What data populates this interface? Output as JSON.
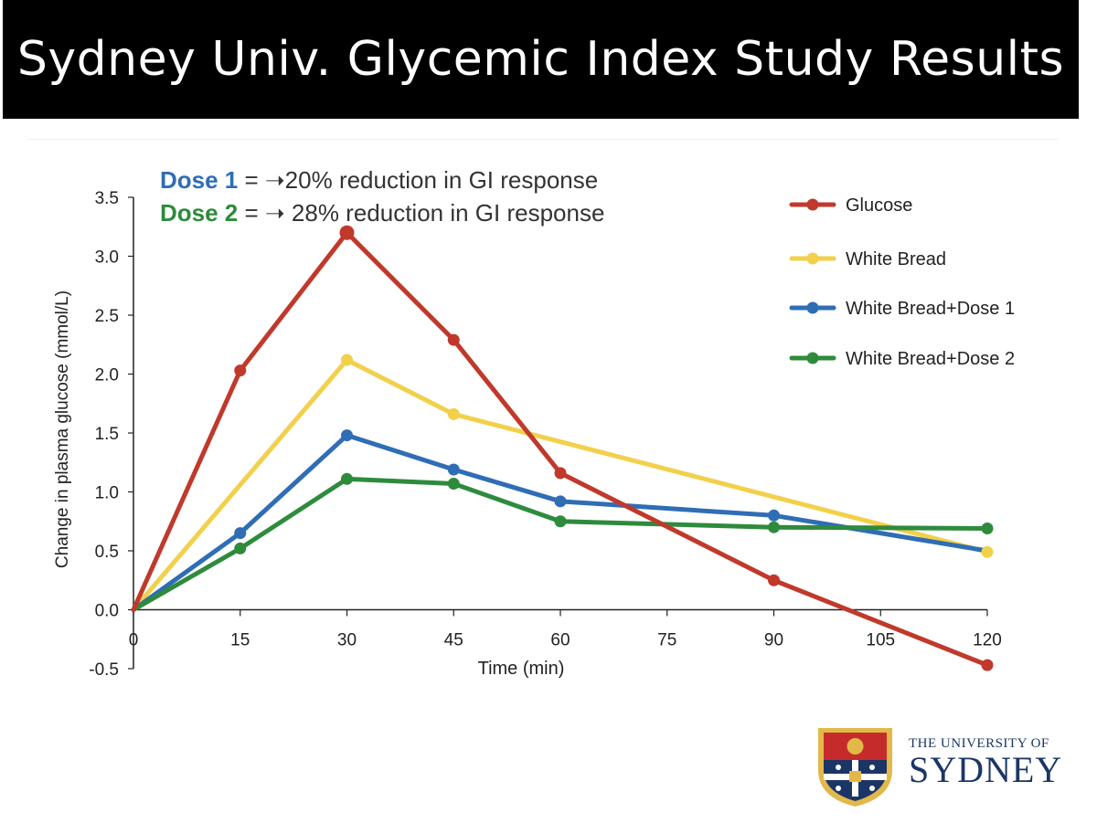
{
  "title": "Sydney Univ. Glycemic Index Study Results",
  "notes": [
    {
      "label": "Dose 1",
      "label_color": "#2f6db5",
      "text": " = ➝20% reduction in GI response"
    },
    {
      "label": "Dose 2",
      "label_color": "#2e8b3c",
      "text": " = ➝ 28% reduction in GI response"
    }
  ],
  "logo": {
    "line1": "THE UNIVERSITY OF",
    "line2": "SYDNEY"
  },
  "chart_data": {
    "type": "line",
    "xlabel": "Time (min)",
    "ylabel": "Change in plasma glucose (mmol/L)",
    "xlim": [
      0,
      120
    ],
    "ylim": [
      -0.5,
      3.5
    ],
    "xticks": [
      0,
      15,
      30,
      45,
      60,
      75,
      90,
      105,
      120
    ],
    "yticks": [
      -0.5,
      0.0,
      0.5,
      1.0,
      1.5,
      2.0,
      2.5,
      3.0,
      3.5
    ],
    "ytick_labels": [
      "-0.5",
      "0.0",
      "0.5",
      "1.0",
      "1.5",
      "2.0",
      "2.5",
      "3.0",
      "3.5"
    ],
    "grid": false,
    "legend_position": "right",
    "series": [
      {
        "name": "Glucose",
        "color": "#c0392b",
        "points": [
          [
            0,
            0.0
          ],
          [
            15,
            2.03
          ],
          [
            30,
            3.2
          ],
          [
            45,
            2.29
          ],
          [
            60,
            1.16
          ],
          [
            90,
            0.25
          ],
          [
            120,
            -0.47
          ]
        ],
        "markers": [
          15,
          30,
          45,
          60,
          90,
          120
        ]
      },
      {
        "name": "White Bread",
        "color": "#f2d04b",
        "points": [
          [
            0,
            0.0
          ],
          [
            30,
            2.12
          ],
          [
            45,
            1.66
          ],
          [
            120,
            0.49
          ]
        ],
        "markers": [
          30,
          45,
          120
        ]
      },
      {
        "name": "White Bread+Dose 1",
        "color": "#2f6db5",
        "points": [
          [
            0,
            0.0
          ],
          [
            15,
            0.65
          ],
          [
            30,
            1.48
          ],
          [
            45,
            1.19
          ],
          [
            60,
            0.92
          ],
          [
            90,
            0.8
          ],
          [
            120,
            0.5
          ]
        ],
        "markers": [
          15,
          30,
          45,
          60,
          90
        ]
      },
      {
        "name": "White Bread+Dose 2",
        "color": "#2e8b3c",
        "points": [
          [
            0,
            0.0
          ],
          [
            15,
            0.52
          ],
          [
            30,
            1.11
          ],
          [
            45,
            1.07
          ],
          [
            60,
            0.75
          ],
          [
            90,
            0.7
          ],
          [
            120,
            0.69
          ]
        ],
        "markers": [
          15,
          30,
          45,
          60,
          90,
          120
        ]
      }
    ]
  }
}
